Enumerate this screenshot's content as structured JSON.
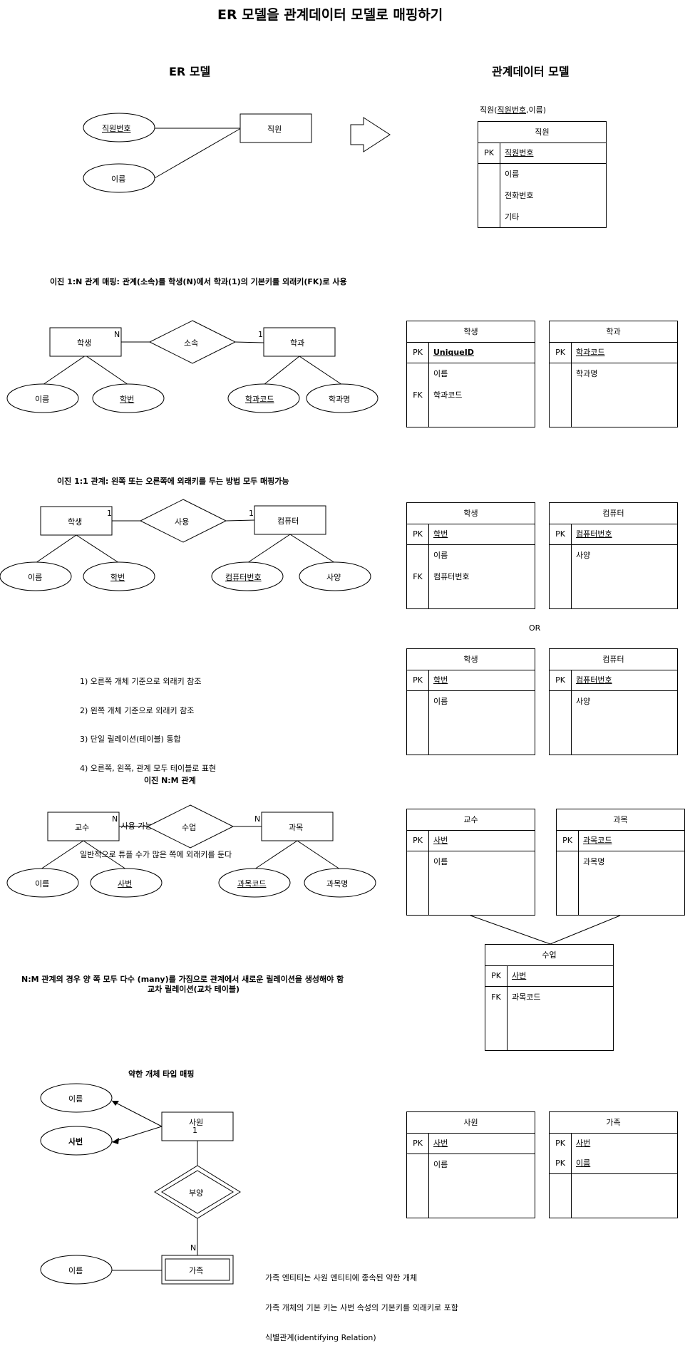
{
  "title": "ER 모델을 관계데이터 모델로 매핑하기",
  "er_model_label": "ER 모델",
  "relational_model_label": "관계데이터 모델",
  "sec1": {
    "schema": "직원(직원번호,이름)",
    "schema_pre": "직원(",
    "schema_key": "직원번호",
    "schema_post": ",이름)",
    "entity": "직원",
    "attr_key": "직원번호",
    "attr": "이름",
    "table": {
      "name": "직원",
      "pk_label": "PK",
      "pk": "직원번호",
      "fields": [
        "이름",
        "전화번호",
        "기타"
      ]
    }
  },
  "sec2": {
    "caption": "이진 1:N 관계 매핑: 관계(소속)를 학생(N)에서 학과(1)의 기본키를 외래키(FK)로 사용",
    "entity_left": "학생",
    "card_left": "N",
    "relationship": "소속",
    "entity_right": "학과",
    "card_right": "1",
    "attrs": [
      "이름",
      "학번",
      "학과코드",
      "학과명"
    ],
    "table_left": {
      "name": "학생",
      "pk_label": "PK",
      "pk": "UniqueID",
      "fields": [
        "이름",
        "학과코드"
      ],
      "fk_label": "FK"
    },
    "table_right": {
      "name": "학과",
      "pk_label": "PK",
      "pk": "학과코드",
      "fields": [
        "학과명"
      ]
    }
  },
  "sec3": {
    "caption": "이진 1:1 관계: 왼쪽 또는 오른쪽에  외래키를 두는 방법 모두 매핑가능",
    "entity_left": "학생",
    "card_left": "1",
    "relationship": "사용",
    "entity_right": "컴퓨터",
    "card_right": "1",
    "attrs": [
      "이름",
      "학번",
      "컴퓨터번호",
      "사양"
    ],
    "table_a_left": {
      "name": "학생",
      "pk_label": "PK",
      "pk": "학번",
      "fields": [
        "이름",
        "컴퓨터번호"
      ],
      "fk_label": "FK"
    },
    "table_a_right": {
      "name": "컴퓨터",
      "pk_label": "PK",
      "pk": "컴퓨터번호",
      "fields": [
        "사양"
      ]
    },
    "or_label": "OR",
    "table_b_left": {
      "name": "학생",
      "pk_label": "PK",
      "pk": "학번",
      "fields": [
        "이름"
      ]
    },
    "table_b_right": {
      "name": "컴퓨터",
      "pk_label": "PK",
      "pk": "컴퓨터번호",
      "fields": [
        "사양"
      ]
    },
    "notes": [
      "1) 오른쪽 개체 기준으로 외래키 참조",
      "2) 왼쪽 개체 기준으로 외래키 참조",
      "3) 단일 릴레이션(테이블) 통합",
      "4) 오른쪽, 왼쪽, 관계 모두 테이블로 표현",
      "",
      "모든 방법이 사용 가능하지만,",
      "일반적으로 튜플 수가 많은 쪽에 외래키를 둔다"
    ]
  },
  "sec4": {
    "caption": "이진 N:M 관계",
    "entity_left": "교수",
    "card_left": "N",
    "relationship": "수업",
    "entity_right": "과목",
    "card_right": "N",
    "attrs": [
      "이름",
      "사번",
      "과목코드",
      "과목명"
    ],
    "table_left": {
      "name": "교수",
      "pk_label": "PK",
      "pk": "사번",
      "fields": [
        "이름"
      ]
    },
    "table_right": {
      "name": "과목",
      "pk_label": "PK",
      "pk": "과목코드",
      "fields": [
        "과목명"
      ]
    },
    "table_cross": {
      "name": "수업",
      "pk_label": "PK",
      "pk": "사번",
      "fields": [
        "과목코드"
      ],
      "fk_label": "FK"
    },
    "note_line1": "N:M 관계의 경우 양 쪽 모두 다수 (many)를 가짐으로 관계에서 새로운 릴레이션을 생성해야 함",
    "note_line2": "교차 릴레이션(교차 테이블)"
  },
  "sec5": {
    "caption": "약한 개체 타입 매핑",
    "attr1": "이름",
    "attr2": "사번",
    "entity": "사원",
    "card_top": "1",
    "relationship": "부양",
    "card_bottom": "N",
    "weak_entity": "가족",
    "weak_attr": "이름",
    "table_left": {
      "name": "사원",
      "pk_label": "PK",
      "pk": "사번",
      "fields": [
        "이름"
      ]
    },
    "table_right": {
      "name": "가족",
      "pk_label": "PK",
      "pk": "사번",
      "pk2_label": "PK",
      "pk2": "이름"
    },
    "notes": [
      "가족 엔티티는 사원 엔티티에 종속된 약한 개체",
      "가족 개체의 기본 키는 사번 속성의 기본키를 외래키로 포함",
      "식별관계(identifying Relation)"
    ]
  }
}
